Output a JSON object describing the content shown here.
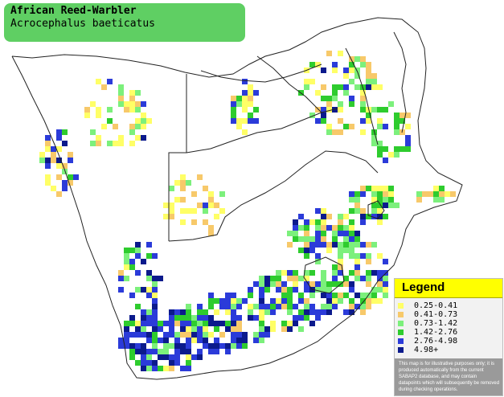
{
  "title": {
    "common_name": "African Reed-Warbler",
    "scientific_name": "Acrocephalus baeticatus",
    "box_color": "#5fcf63"
  },
  "map": {
    "background_color": "#ffffff",
    "border_color": "#222222"
  },
  "legend": {
    "title": "Legend",
    "header_color": "#ffff00",
    "items": [
      {
        "label": "0.25-0.41",
        "color": "#ffff66"
      },
      {
        "label": "0.41-0.73",
        "color": "#f7c96a"
      },
      {
        "label": "0.73-1.42",
        "color": "#7cf07c"
      },
      {
        "label": "1.42-2.76",
        "color": "#2ecc2e"
      },
      {
        "label": "2.76-4.98",
        "color": "#2b3bd9"
      },
      {
        "label": "4.98+",
        "color": "#0b1a8c"
      }
    ],
    "disclaimer": "This map is for illustrative purposes only; it is produced automatically from the current SABAP2 database, and may contain datapoints which will subsequently be removed during checking operations."
  }
}
